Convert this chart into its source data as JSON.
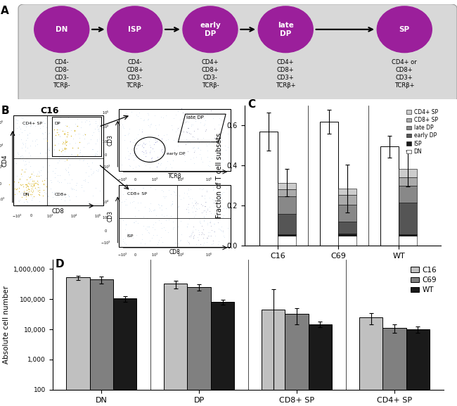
{
  "panel_A": {
    "stages": [
      "DN",
      "ISP",
      "early\nDP",
      "late\nDP",
      "SP"
    ],
    "labels": [
      "CD4-\nCD8-\nCD3-\nTCRβ-",
      "CD4-\nCD8+\nCD3-\nTCRβ-",
      "CD4+\nCD8+\nCD3-\nTCRβ-",
      "CD4+\nCD8+\nCD3+\nTCRβ+",
      "CD4+ or\nCD8+\nCD3+\nTCRβ+"
    ],
    "circle_color": "#9B1F9B",
    "bg_color": "#D3D3D3",
    "text_color": "white"
  },
  "panel_C": {
    "groups": [
      "C16",
      "C69",
      "WT"
    ],
    "bar1_values": [
      0.57,
      0.62,
      0.495
    ],
    "bar1_errors": [
      0.095,
      0.06,
      0.055
    ],
    "bar2_values": [
      0.315,
      0.285,
      0.385
    ],
    "bar2_errors": [
      0.07,
      0.12,
      0.09
    ],
    "stack_data": {
      "DN": [
        0.05,
        0.05,
        0.05
      ],
      "ISP": [
        0.005,
        0.01,
        0.005
      ],
      "early_DP": [
        0.105,
        0.06,
        0.16
      ],
      "late_DP": [
        0.085,
        0.085,
        0.085
      ],
      "CD8_SP": [
        0.038,
        0.048,
        0.042
      ],
      "CD4_SP": [
        0.032,
        0.032,
        0.043
      ]
    },
    "colors": {
      "DN": "#FFFFFF",
      "ISP": "#1A1A1A",
      "early_DP": "#555555",
      "late_DP": "#888888",
      "CD8_SP": "#AAAAAA",
      "CD4_SP": "#CCCCCC"
    },
    "ylabel": "Fraction of T cell subsets",
    "ylim": [
      0,
      0.7
    ],
    "legend_labels": [
      "CD4+ SP",
      "CD8+ SP",
      "late DP",
      "early DP",
      "ISP",
      "DN"
    ]
  },
  "panel_D": {
    "categories": [
      "DN",
      "DP",
      "CD8+ SP",
      "CD4+ SP"
    ],
    "C16_values": [
      520000,
      320000,
      45000,
      25000
    ],
    "C16_errors": [
      80000,
      90000,
      170000,
      10000
    ],
    "C69_values": [
      450000,
      250000,
      33000,
      11000
    ],
    "C69_errors": [
      120000,
      60000,
      18000,
      3500
    ],
    "WT_values": [
      105000,
      80000,
      15000,
      10000
    ],
    "WT_errors": [
      22000,
      14000,
      3500,
      2500
    ],
    "colors": {
      "C16": "#C0C0C0",
      "C69": "#808080",
      "WT": "#1A1A1A"
    },
    "ylabel": "Absolute cell number",
    "ylim": [
      100,
      2000000
    ]
  }
}
